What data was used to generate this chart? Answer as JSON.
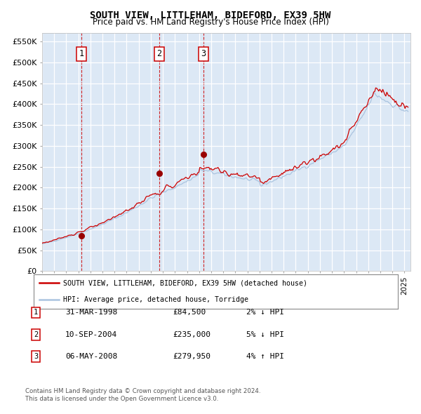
{
  "title": "SOUTH VIEW, LITTLEHAM, BIDEFORD, EX39 5HW",
  "subtitle": "Price paid vs. HM Land Registry's House Price Index (HPI)",
  "legend_line1": "SOUTH VIEW, LITTLEHAM, BIDEFORD, EX39 5HW (detached house)",
  "legend_line2": "HPI: Average price, detached house, Torridge",
  "hpi_color": "#aac4e0",
  "price_color": "#cc0000",
  "bg_color": "#dce8f5",
  "grid_color": "#ffffff",
  "yticks": [
    0,
    50000,
    100000,
    150000,
    200000,
    250000,
    300000,
    350000,
    400000,
    450000,
    500000,
    550000
  ],
  "ylabels": [
    "£0",
    "£50K",
    "£100K",
    "£150K",
    "£200K",
    "£250K",
    "£300K",
    "£350K",
    "£400K",
    "£450K",
    "£500K",
    "£550K"
  ],
  "xlim_start": 1995.0,
  "xlim_end": 2025.5,
  "ylim": [
    0,
    570000
  ],
  "sales": [
    {
      "num": 1,
      "year": 1998.25,
      "price": 84500,
      "label": "31-MAR-1998",
      "amount": "£84,500",
      "hpi_diff": "2% ↓ HPI"
    },
    {
      "num": 2,
      "year": 2004.69,
      "price": 235000,
      "label": "10-SEP-2004",
      "amount": "£235,000",
      "hpi_diff": "5% ↓ HPI"
    },
    {
      "num": 3,
      "year": 2008.35,
      "price": 279950,
      "label": "06-MAY-2008",
      "amount": "£279,950",
      "hpi_diff": "4% ↑ HPI"
    }
  ],
  "footnote1": "Contains HM Land Registry data © Crown copyright and database right 2024.",
  "footnote2": "This data is licensed under the Open Government Licence v3.0."
}
